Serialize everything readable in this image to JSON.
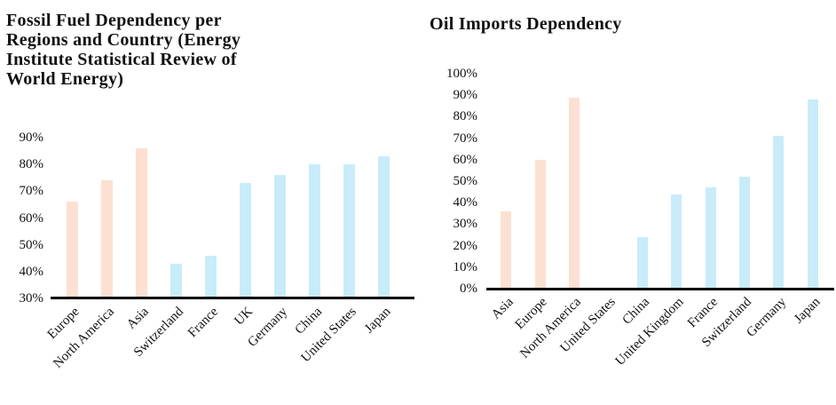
{
  "page": {
    "background": "#ffffff",
    "text_color": "#111111",
    "axis_color": "#000000"
  },
  "colors": {
    "region_bar": "#fce0d1",
    "country_bar": "#c8ecfa"
  },
  "chart_data": [
    {
      "type": "bar",
      "title": "Fossil Fuel Dependency per\nRegions and Country (Energy\nInstitute Statistical Review of\nWorld Energy)",
      "xlabel": "",
      "ylabel": "",
      "ylim": [
        30,
        90
      ],
      "grid": false,
      "legend": "none",
      "categories": [
        "Europe",
        "North America",
        "Asia",
        "Switzerland",
        "France",
        "UK",
        "Germany",
        "China",
        "United States",
        "Japan"
      ],
      "values": [
        66,
        74,
        86,
        43,
        46,
        73,
        76,
        80,
        80,
        83
      ],
      "bar_colors": [
        "#fce0d1",
        "#fce0d1",
        "#fce0d1",
        "#c8ecfa",
        "#c8ecfa",
        "#c8ecfa",
        "#c8ecfa",
        "#c8ecfa",
        "#c8ecfa",
        "#c8ecfa"
      ],
      "ytick_values": [
        90,
        80,
        70,
        60,
        50,
        40,
        30
      ],
      "ytick_labels": [
        "90%",
        "80%",
        "70%",
        "60%",
        "50%",
        "40%",
        "30%"
      ]
    },
    {
      "type": "bar",
      "title": "Oil Imports Dependency",
      "xlabel": "",
      "ylabel": "",
      "ylim": [
        0,
        100
      ],
      "grid": false,
      "legend": "none",
      "categories": [
        "Asia",
        "Europe",
        "North America",
        "United States",
        "China",
        "United Kingdom",
        "France",
        "Switzerland",
        "Germany",
        "Japan"
      ],
      "values": [
        36,
        60,
        89,
        0,
        24,
        44,
        47,
        52,
        71,
        88
      ],
      "bar_colors": [
        "#fce0d1",
        "#fce0d1",
        "#fce0d1",
        "#c8ecfa",
        "#c8ecfa",
        "#c8ecfa",
        "#c8ecfa",
        "#c8ecfa",
        "#c8ecfa",
        "#c8ecfa"
      ],
      "ytick_values": [
        100,
        90,
        80,
        70,
        60,
        50,
        40,
        30,
        20,
        10,
        0
      ],
      "ytick_labels": [
        "100%",
        "90%",
        "80%",
        "70%",
        "60%",
        "50%",
        "40%",
        "30%",
        "20%",
        "10%",
        "0%"
      ]
    }
  ]
}
